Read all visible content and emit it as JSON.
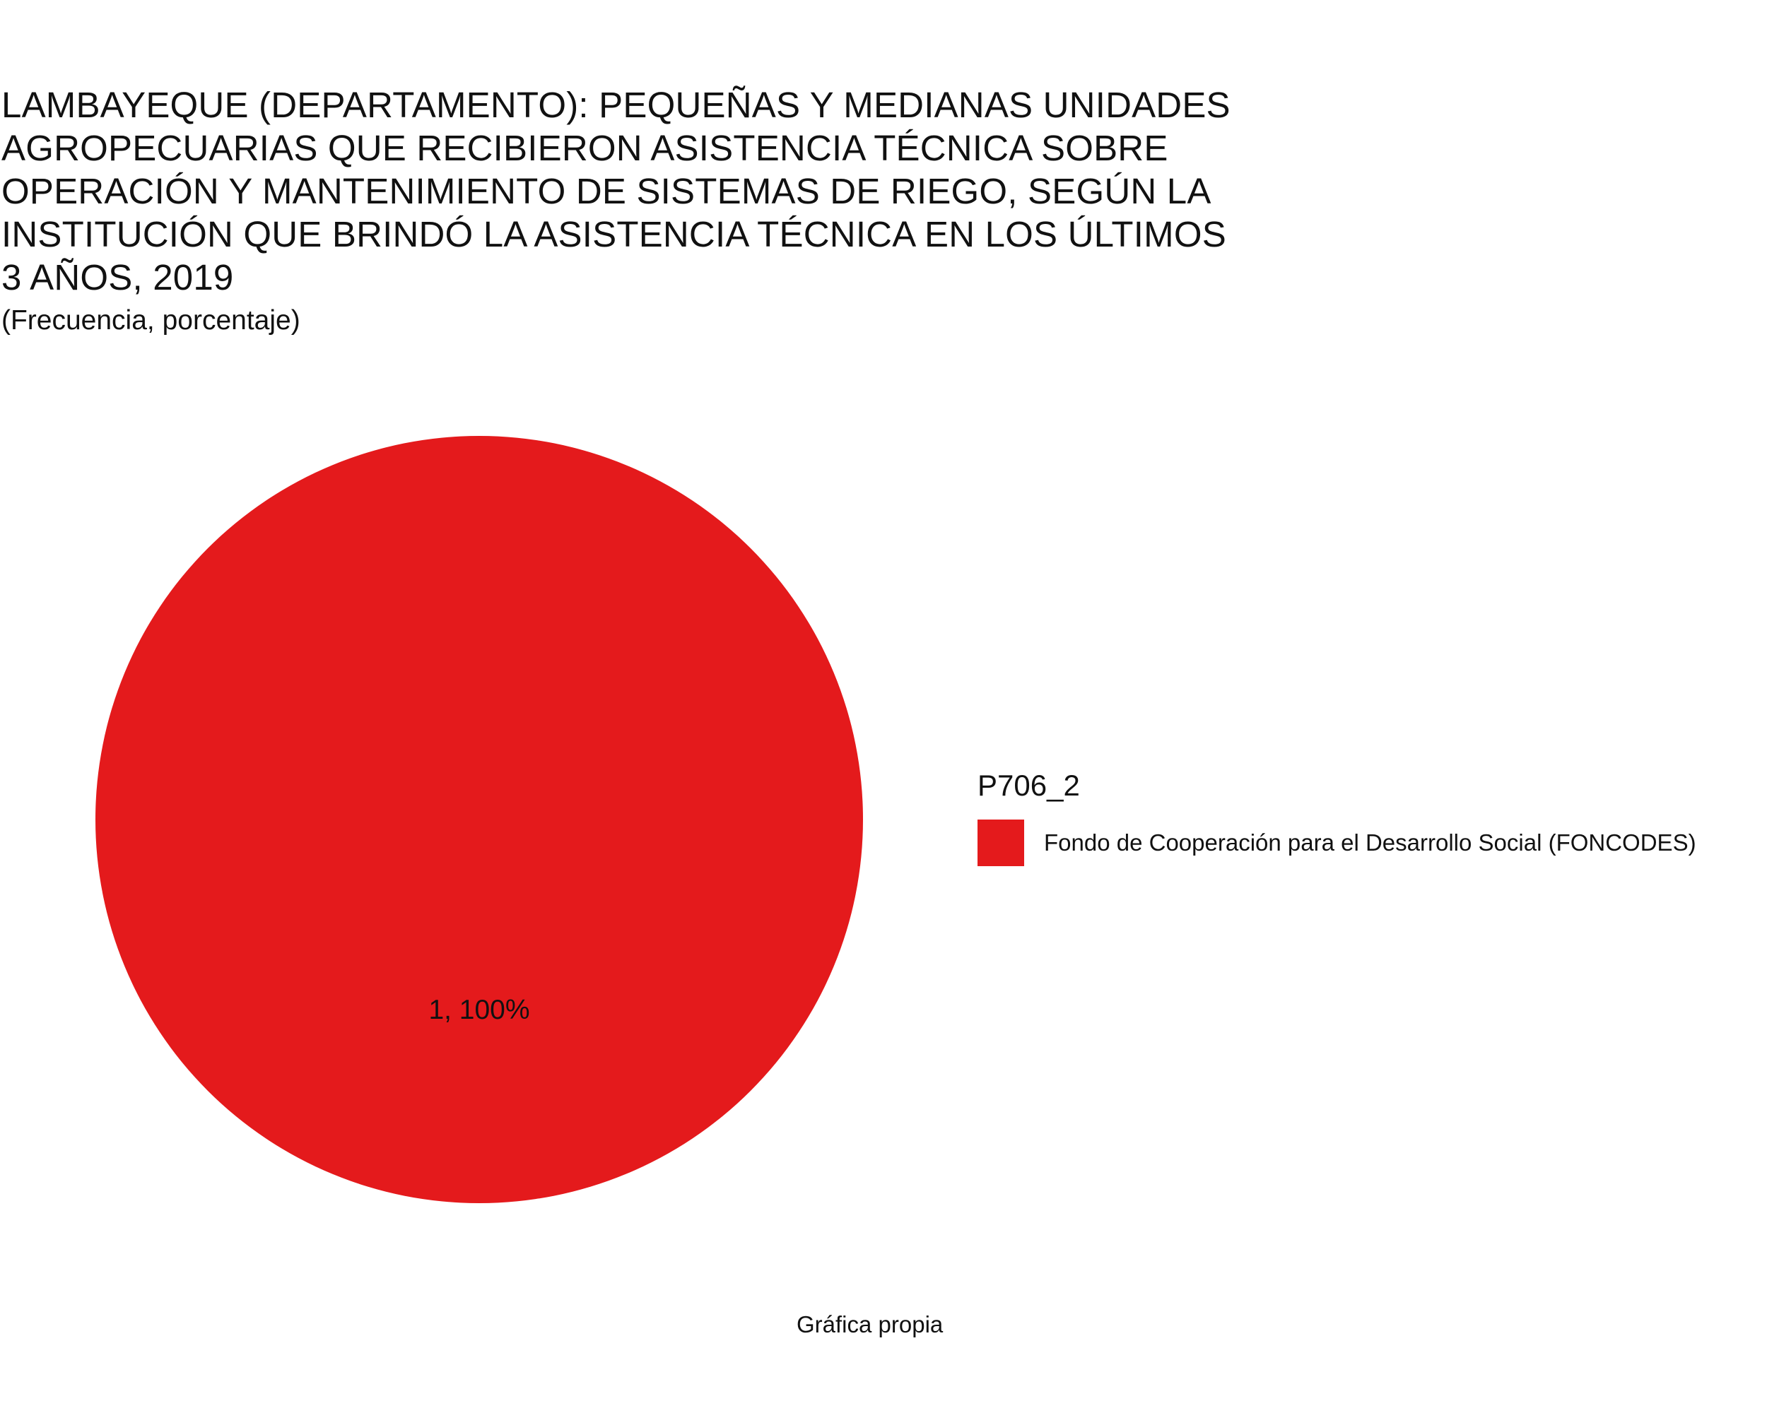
{
  "chart_data": {
    "type": "pie",
    "title_lines": [
      "LAMBAYEQUE (DEPARTAMENTO): PEQUEÑAS Y MEDIANAS UNIDADES",
      "AGROPECUARIAS QUE RECIBIERON ASISTENCIA TÉCNICA SOBRE",
      "OPERACIÓN Y MANTENIMIENTO DE SISTEMAS DE RIEGO, SEGÚN LA",
      "INSTITUCIÓN QUE BRINDÓ LA ASISTENCIA TÉCNICA EN LOS ÚLTIMOS",
      "3 AÑOS, 2019"
    ],
    "subtitle": "(Frecuencia, porcentaje)",
    "legend_title": "P706_2",
    "legend_position": "right",
    "caption": "Gráfica propia",
    "slices": [
      {
        "category": "Fondo de Cooperación para el Desarrollo Social (FONCODES)",
        "value": 1,
        "percent": 100,
        "label": "1, 100%",
        "color": "#E41A1C"
      }
    ]
  }
}
